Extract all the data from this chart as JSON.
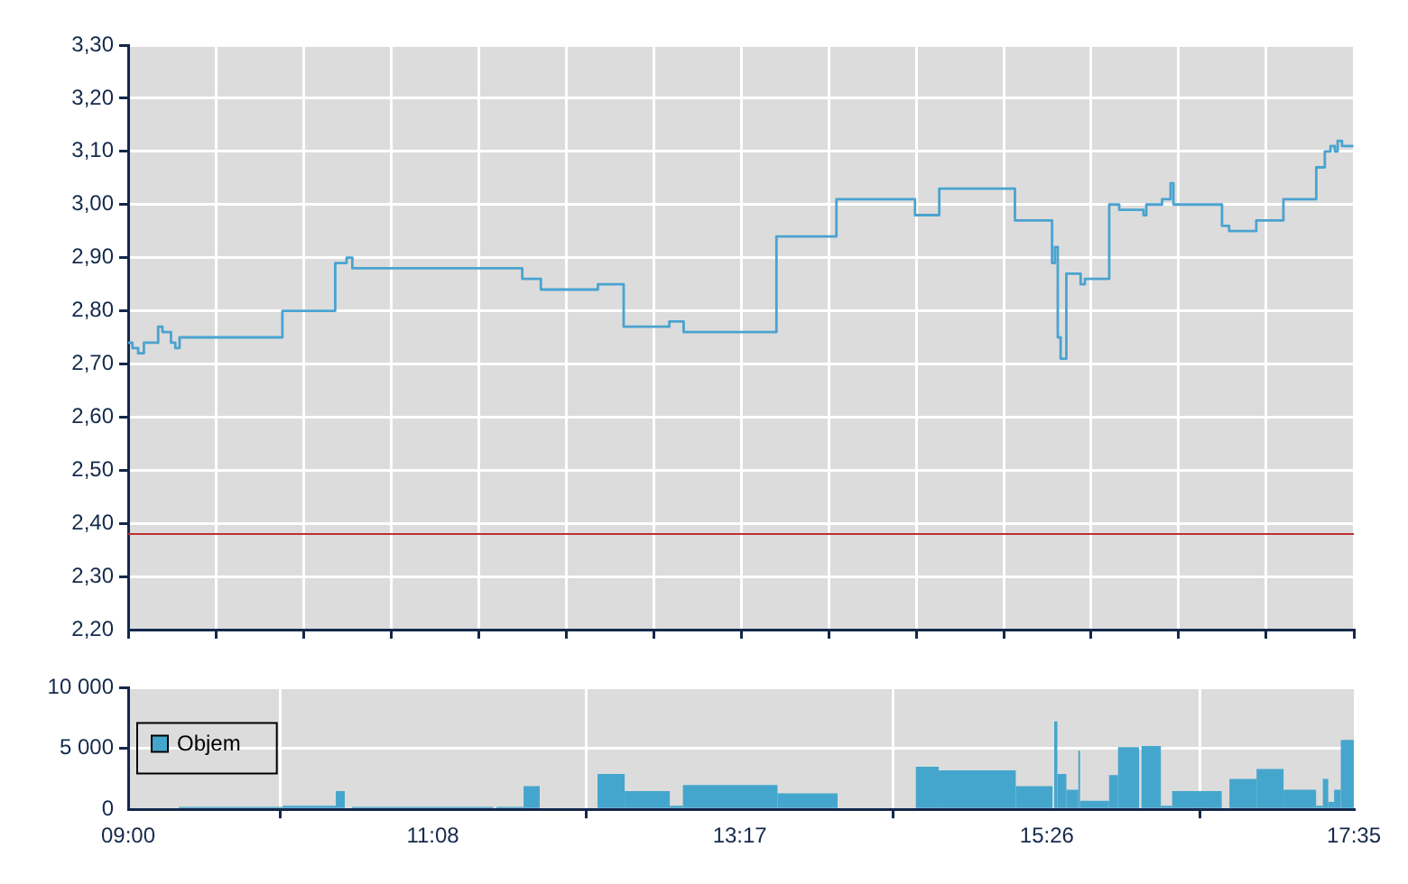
{
  "chart_data": [
    {
      "type": "step",
      "x": [
        9,
        9.03,
        9.07,
        9.11,
        9.21,
        9.24,
        9.3,
        9.33,
        9.36,
        10.08,
        10.45,
        10.53,
        10.57,
        11.76,
        11.89,
        12.29,
        12.47,
        12.79,
        12.89,
        13.54,
        13.96,
        14.51,
        14.68,
        15.21,
        15.47,
        15.49,
        15.51,
        15.53,
        15.57,
        15.67,
        15.7,
        15.87,
        15.94,
        16.11,
        16.13,
        16.24,
        16.3,
        16.32,
        16.66,
        16.71,
        16.9,
        17.09,
        17.32,
        17.38,
        17.42,
        17.45,
        17.47,
        17.5,
        17.58
      ],
      "series": [
        {
          "color": "#4aa3d0",
          "values": [
            2.74,
            2.73,
            2.72,
            2.74,
            2.77,
            2.76,
            2.74,
            2.73,
            2.75,
            2.8,
            2.89,
            2.9,
            2.88,
            2.86,
            2.84,
            2.85,
            2.77,
            2.78,
            2.76,
            2.94,
            3.01,
            2.98,
            3.03,
            2.97,
            2.89,
            2.92,
            2.75,
            2.71,
            2.87,
            2.85,
            2.86,
            3.0,
            2.99,
            2.98,
            3.0,
            3.01,
            3.04,
            3.0,
            2.96,
            2.95,
            2.97,
            3.01,
            3.07,
            3.1,
            3.11,
            3.1,
            3.12,
            3.11,
            3.11
          ]
        }
      ],
      "xlim": [
        9,
        17.5833
      ],
      "xticks": [
        {
          "value": 9,
          "label": null
        },
        {
          "value": 9.6131,
          "label": null
        },
        {
          "value": 10.2262,
          "label": null
        },
        {
          "value": 10.8393,
          "label": null
        },
        {
          "value": 11.4524,
          "label": null
        },
        {
          "value": 12.0655,
          "label": null
        },
        {
          "value": 12.6786,
          "label": null
        },
        {
          "value": 13.2917,
          "label": null
        },
        {
          "value": 13.9048,
          "label": null
        },
        {
          "value": 14.5179,
          "label": null
        },
        {
          "value": 15.131,
          "label": null
        },
        {
          "value": 15.744,
          "label": null
        },
        {
          "value": 16.3571,
          "label": null
        },
        {
          "value": 16.9702,
          "label": null
        },
        {
          "value": 17.5833,
          "label": null
        }
      ],
      "ylim": [
        2.2,
        3.3
      ],
      "yticks": [
        {
          "value": 2.2,
          "label": "2,20"
        },
        {
          "value": 2.3,
          "label": "2,30"
        },
        {
          "value": 2.4,
          "label": "2,40"
        },
        {
          "value": 2.5,
          "label": "2,50"
        },
        {
          "value": 2.6,
          "label": "2,60"
        },
        {
          "value": 2.7,
          "label": "2,70"
        },
        {
          "value": 2.8,
          "label": "2,80"
        },
        {
          "value": 2.9,
          "label": "2,90"
        },
        {
          "value": 3.0,
          "label": "3,00"
        },
        {
          "value": 3.1,
          "label": "3,10"
        },
        {
          "value": 3.2,
          "label": "3,20"
        },
        {
          "value": 3.3,
          "label": "3,30"
        }
      ],
      "ref_lines": [
        {
          "axis": "y",
          "value": 2.38,
          "color": "#c03030"
        }
      ],
      "grid": true,
      "tick_labels": "y"
    },
    {
      "type": "histogram",
      "bins": [
        9.354,
        10.083,
        10.454,
        10.517,
        10.568,
        11.558,
        11.579,
        11.769,
        11.882,
        12.287,
        12.477,
        12.793,
        12.885,
        13.547,
        13.968,
        14.516,
        14.676,
        15.216,
        15.473,
        15.485,
        15.507,
        15.57,
        15.654,
        15.666,
        15.869,
        15.932,
        16.08,
        16.096,
        16.232,
        16.311,
        16.658,
        16.712,
        16.902,
        17.091,
        17.319,
        17.366,
        17.404,
        17.445,
        17.492,
        17.583
      ],
      "series": [
        {
          "name": "Objem",
          "color": "#45a6cd",
          "values": [
            200,
            300,
            1500,
            0,
            200,
            0,
            200,
            1900,
            0,
            2900,
            1500,
            300,
            2000,
            1300,
            0,
            3500,
            3200,
            1900,
            0,
            7200,
            2900,
            1600,
            4800,
            700,
            2800,
            5100,
            0,
            5200,
            300,
            1500,
            0,
            2500,
            3300,
            1600,
            300,
            2500,
            600,
            1600,
            5700
          ]
        }
      ],
      "xlim": [
        9,
        17.5833
      ],
      "xticks": [
        {
          "value": 9,
          "label": "09:00"
        },
        {
          "value": 11.1333,
          "label": "11:08"
        },
        {
          "value": 13.2833,
          "label": "13:17"
        },
        {
          "value": 15.4333,
          "label": "15:26"
        },
        {
          "value": 17.5833,
          "label": "17:35"
        }
      ],
      "ylim": [
        0,
        10000
      ],
      "yticks": [
        0,
        {
          "value": 5000,
          "label": "5 000"
        },
        {
          "value": 10000,
          "label": "10 000"
        }
      ],
      "grid": true,
      "legend": "left"
    }
  ]
}
